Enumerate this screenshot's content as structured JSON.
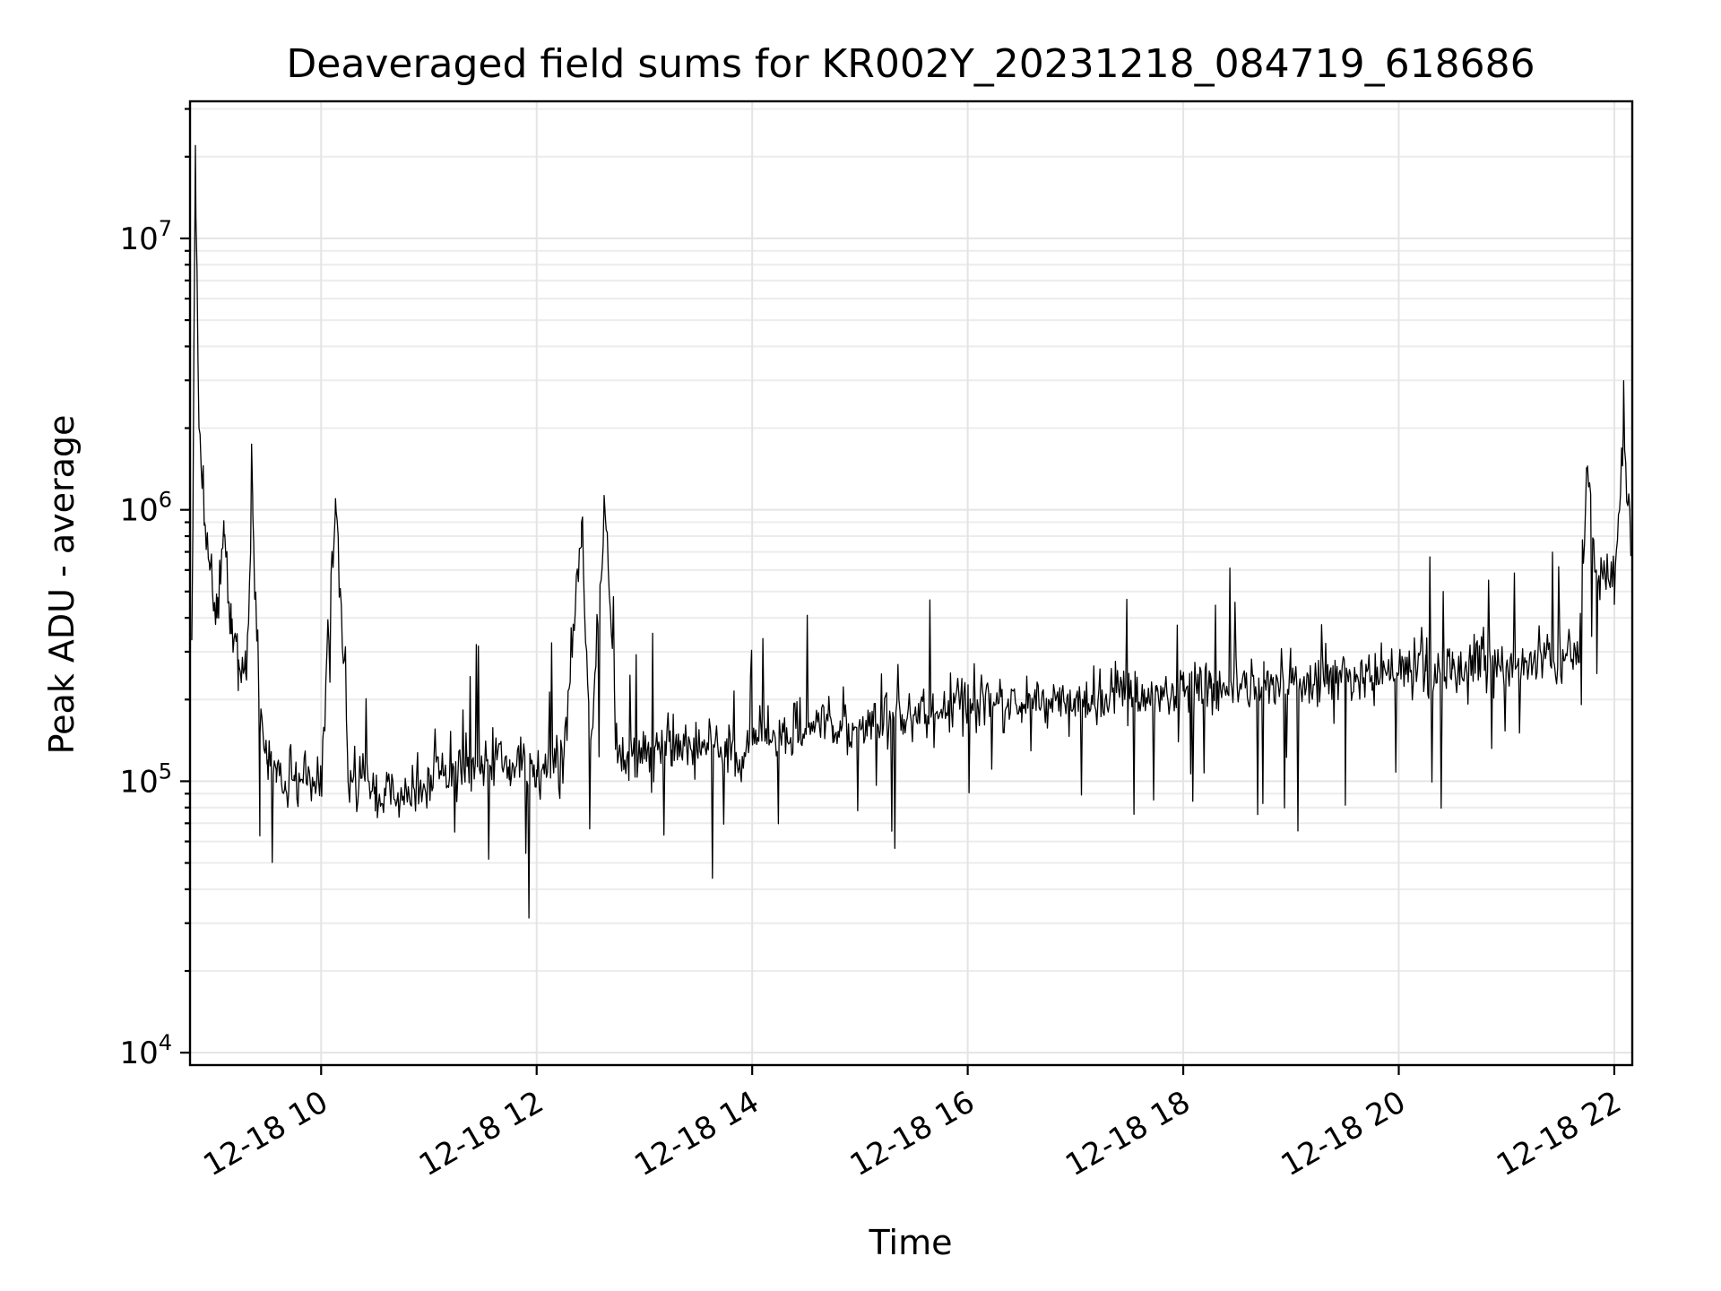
{
  "chart_data": {
    "type": "line",
    "title": "Deaveraged field sums for KR002Y_20231218_084719_618686",
    "xlabel": "Time",
    "ylabel": "Peak ADU - average",
    "x_scale": "time",
    "y_scale": "log",
    "xlim": [
      "2023-12-18 08:47",
      "2023-12-18 22:10"
    ],
    "ylim": [
      9000,
      32000000
    ],
    "x_ticks": [
      {
        "value": "2023-12-18 10:00",
        "label": "12-18 10"
      },
      {
        "value": "2023-12-18 12:00",
        "label": "12-18 12"
      },
      {
        "value": "2023-12-18 14:00",
        "label": "12-18 14"
      },
      {
        "value": "2023-12-18 16:00",
        "label": "12-18 16"
      },
      {
        "value": "2023-12-18 18:00",
        "label": "12-18 18"
      },
      {
        "value": "2023-12-18 20:00",
        "label": "12-18 20"
      },
      {
        "value": "2023-12-18 22:00",
        "label": "12-18 22"
      }
    ],
    "y_ticks": [
      {
        "value": 10000,
        "base": "10",
        "exp": "4"
      },
      {
        "value": 100000,
        "base": "10",
        "exp": "5"
      },
      {
        "value": 1000000,
        "base": "10",
        "exp": "6"
      },
      {
        "value": 10000000,
        "base": "10",
        "exp": "7"
      }
    ],
    "grid": true,
    "line_color": "#000000",
    "series": [
      {
        "x": [
          "2023-12-18 08:48",
          "2023-12-18 08:50",
          "2023-12-18 08:52",
          "2023-12-18 08:55",
          "2023-12-18 08:58",
          "2023-12-18 09:02",
          "2023-12-18 09:06",
          "2023-12-18 09:10",
          "2023-12-18 09:14",
          "2023-12-18 09:18",
          "2023-12-18 09:22",
          "2023-12-18 09:26",
          "2023-12-18 09:30",
          "2023-12-18 09:35",
          "2023-12-18 09:40",
          "2023-12-18 09:45",
          "2023-12-18 09:50",
          "2023-12-18 10:00",
          "2023-12-18 10:08",
          "2023-12-18 10:15",
          "2023-12-18 10:30",
          "2023-12-18 10:45",
          "2023-12-18 11:00",
          "2023-12-18 11:15",
          "2023-12-18 11:30",
          "2023-12-18 11:45",
          "2023-12-18 12:00",
          "2023-12-18 12:15",
          "2023-12-18 12:25",
          "2023-12-18 12:30",
          "2023-12-18 12:38",
          "2023-12-18 12:45",
          "2023-12-18 13:00",
          "2023-12-18 13:15",
          "2023-12-18 13:30",
          "2023-12-18 13:45",
          "2023-12-18 13:53",
          "2023-12-18 14:00",
          "2023-12-18 14:15",
          "2023-12-18 14:30",
          "2023-12-18 14:45",
          "2023-12-18 15:00",
          "2023-12-18 15:15",
          "2023-12-18 15:30",
          "2023-12-18 15:45",
          "2023-12-18 16:00",
          "2023-12-18 16:15",
          "2023-12-18 16:30",
          "2023-12-18 16:45",
          "2023-12-18 17:00",
          "2023-12-18 17:15",
          "2023-12-18 17:30",
          "2023-12-18 17:45",
          "2023-12-18 18:00",
          "2023-12-18 18:15",
          "2023-12-18 18:30",
          "2023-12-18 18:45",
          "2023-12-18 19:00",
          "2023-12-18 19:15",
          "2023-12-18 19:30",
          "2023-12-18 19:45",
          "2023-12-18 20:00",
          "2023-12-18 20:15",
          "2023-12-18 20:30",
          "2023-12-18 20:45",
          "2023-12-18 21:00",
          "2023-12-18 21:15",
          "2023-12-18 21:30",
          "2023-12-18 21:40",
          "2023-12-18 21:45",
          "2023-12-18 21:50",
          "2023-12-18 21:55",
          "2023-12-18 22:00",
          "2023-12-18 22:05",
          "2023-12-18 22:10"
        ],
        "y": [
          350000,
          22000000,
          2000000,
          900000,
          600000,
          400000,
          800000,
          350000,
          280000,
          250000,
          950000,
          150000,
          120000,
          110000,
          100000,
          105000,
          100000,
          98000,
          1100000,
          100000,
          95000,
          90000,
          105000,
          110000,
          115000,
          120000,
          110000,
          120000,
          900000,
          125000,
          1000000,
          120000,
          125000,
          130000,
          135000,
          140000,
          120000,
          145000,
          150000,
          155000,
          160000,
          165000,
          170000,
          175000,
          180000,
          185000,
          190000,
          195000,
          200000,
          200000,
          205000,
          210000,
          215000,
          215000,
          220000,
          225000,
          230000,
          230000,
          235000,
          240000,
          245000,
          250000,
          255000,
          260000,
          265000,
          270000,
          275000,
          280000,
          290000,
          1400000,
          600000,
          550000,
          520000,
          2000000,
          650000
        ]
      }
    ]
  }
}
